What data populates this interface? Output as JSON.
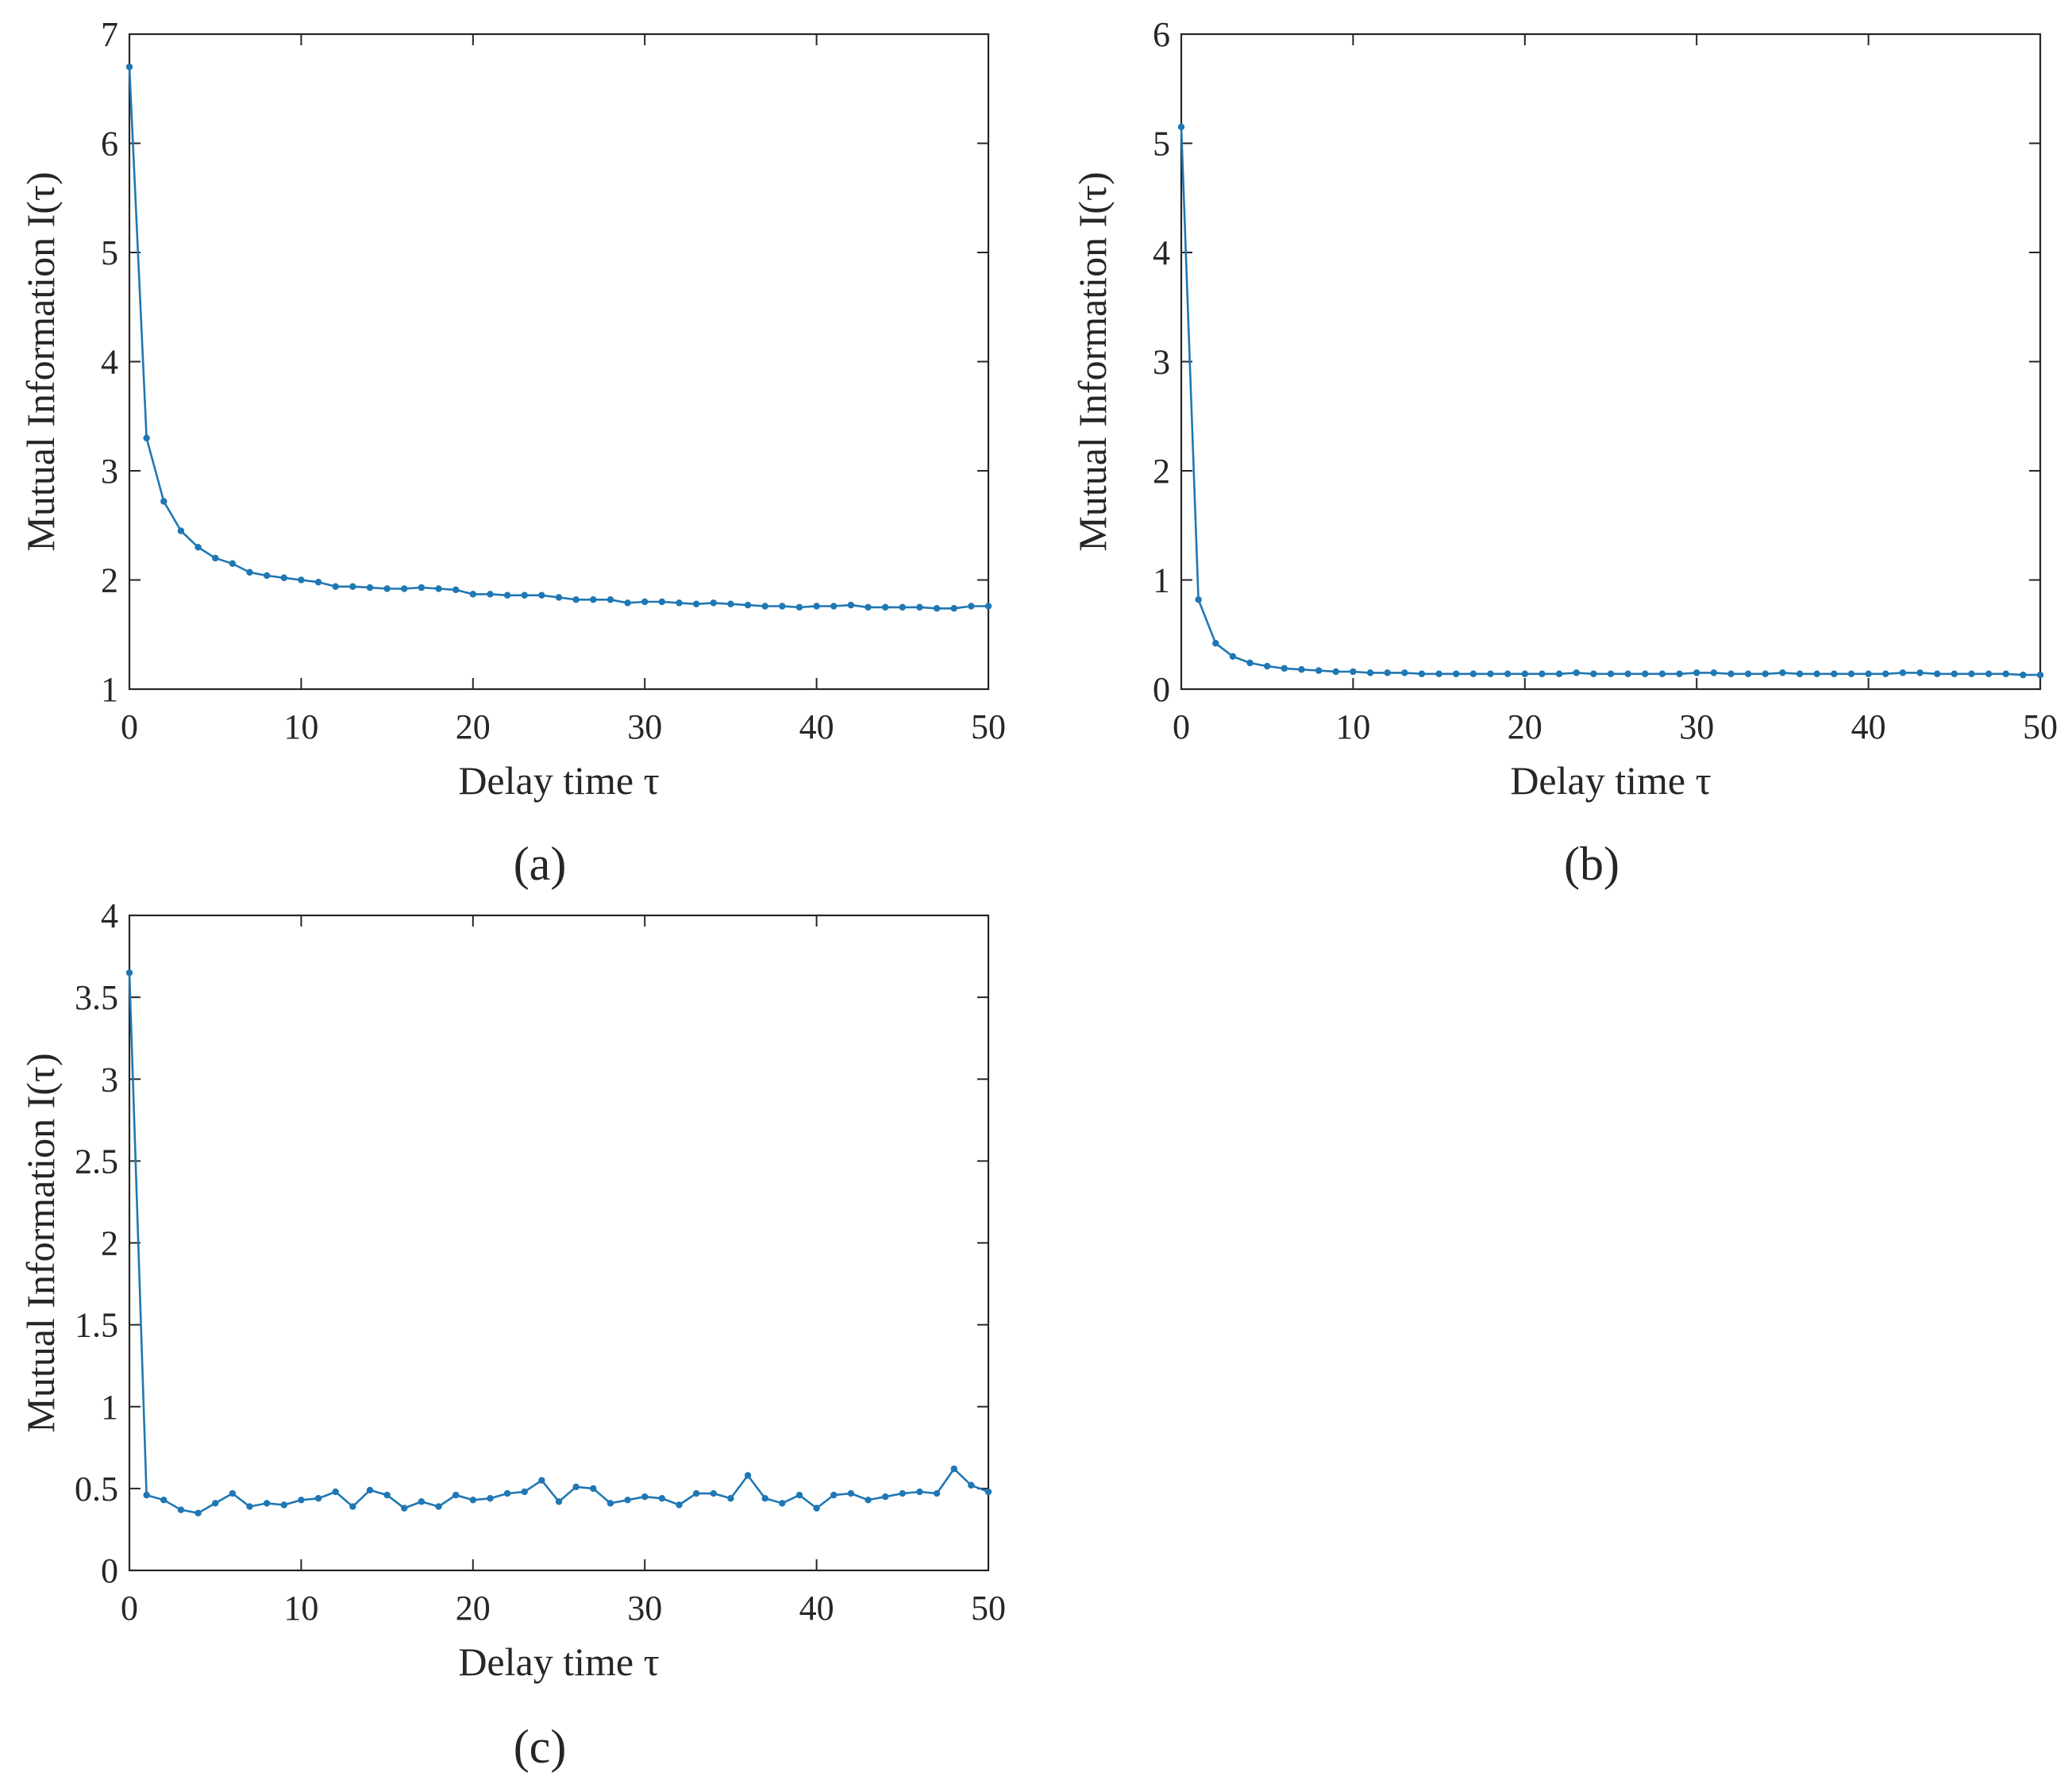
{
  "colors": {
    "series": "#1f77b4",
    "axis": "#262626",
    "background": "#ffffff"
  },
  "chart_data": [
    {
      "type": "line",
      "panel_label": "(a)",
      "xlabel": "Delay time τ",
      "ylabel": "Mutual Information I(τ)",
      "xlim": [
        0,
        50
      ],
      "ylim": [
        1,
        7
      ],
      "xticks": [
        0,
        10,
        20,
        30,
        40,
        50
      ],
      "yticks": [
        1,
        2,
        3,
        4,
        5,
        6,
        7
      ],
      "xtick_labels": [
        "0",
        "10",
        "20",
        "30",
        "40",
        "50"
      ],
      "ytick_labels": [
        "1",
        "2",
        "3",
        "4",
        "5",
        "6",
        "7"
      ],
      "grid": false,
      "series": [
        {
          "name": "I(τ)",
          "x": [
            0,
            1,
            2,
            3,
            4,
            5,
            6,
            7,
            8,
            9,
            10,
            11,
            12,
            13,
            14,
            15,
            16,
            17,
            18,
            19,
            20,
            21,
            22,
            23,
            24,
            25,
            26,
            27,
            28,
            29,
            30,
            31,
            32,
            33,
            34,
            35,
            36,
            37,
            38,
            39,
            40,
            41,
            42,
            43,
            44,
            45,
            46,
            47,
            48,
            49,
            50
          ],
          "values": [
            6.7,
            3.3,
            2.72,
            2.45,
            2.3,
            2.2,
            2.15,
            2.07,
            2.04,
            2.02,
            2.0,
            1.98,
            1.94,
            1.94,
            1.93,
            1.92,
            1.92,
            1.93,
            1.92,
            1.91,
            1.87,
            1.87,
            1.86,
            1.86,
            1.86,
            1.84,
            1.82,
            1.82,
            1.82,
            1.79,
            1.8,
            1.8,
            1.79,
            1.78,
            1.79,
            1.78,
            1.77,
            1.76,
            1.76,
            1.75,
            1.76,
            1.76,
            1.77,
            1.75,
            1.75,
            1.75,
            1.75,
            1.74,
            1.74,
            1.76,
            1.76
          ]
        }
      ]
    },
    {
      "type": "line",
      "panel_label": "(b)",
      "xlabel": "Delay time τ",
      "ylabel": "Mutual Information I(τ)",
      "xlim": [
        0,
        50
      ],
      "ylim": [
        0,
        6
      ],
      "xticks": [
        0,
        10,
        20,
        30,
        40,
        50
      ],
      "yticks": [
        0,
        1,
        2,
        3,
        4,
        5,
        6
      ],
      "xtick_labels": [
        "0",
        "10",
        "20",
        "30",
        "40",
        "50"
      ],
      "ytick_labels": [
        "0",
        "1",
        "2",
        "3",
        "4",
        "5",
        "6"
      ],
      "grid": false,
      "series": [
        {
          "name": "I(τ)",
          "x": [
            0,
            1,
            2,
            3,
            4,
            5,
            6,
            7,
            8,
            9,
            10,
            11,
            12,
            13,
            14,
            15,
            16,
            17,
            18,
            19,
            20,
            21,
            22,
            23,
            24,
            25,
            26,
            27,
            28,
            29,
            30,
            31,
            32,
            33,
            34,
            35,
            36,
            37,
            38,
            39,
            40,
            41,
            42,
            43,
            44,
            45,
            46,
            47,
            48,
            49,
            50
          ],
          "values": [
            5.15,
            0.82,
            0.42,
            0.3,
            0.24,
            0.21,
            0.19,
            0.18,
            0.17,
            0.16,
            0.16,
            0.15,
            0.15,
            0.15,
            0.14,
            0.14,
            0.14,
            0.14,
            0.14,
            0.14,
            0.14,
            0.14,
            0.14,
            0.15,
            0.14,
            0.14,
            0.14,
            0.14,
            0.14,
            0.14,
            0.15,
            0.15,
            0.14,
            0.14,
            0.14,
            0.15,
            0.14,
            0.14,
            0.14,
            0.14,
            0.14,
            0.14,
            0.15,
            0.15,
            0.14,
            0.14,
            0.14,
            0.14,
            0.14,
            0.13,
            0.13
          ]
        }
      ]
    },
    {
      "type": "line",
      "panel_label": "(c)",
      "xlabel": "Delay time τ",
      "ylabel": "Mutual Information I(τ)",
      "xlim": [
        0,
        50
      ],
      "ylim": [
        0,
        4
      ],
      "xticks": [
        0,
        10,
        20,
        30,
        40,
        50
      ],
      "yticks": [
        0,
        0.5,
        1,
        1.5,
        2,
        2.5,
        3,
        3.5,
        4
      ],
      "xtick_labels": [
        "0",
        "10",
        "20",
        "30",
        "40",
        "50"
      ],
      "ytick_labels": [
        "0",
        "0.5",
        "1",
        "1.5",
        "2",
        "2.5",
        "3",
        "3.5",
        "4"
      ],
      "grid": false,
      "series": [
        {
          "name": "I(τ)",
          "x": [
            0,
            1,
            2,
            3,
            4,
            5,
            6,
            7,
            8,
            9,
            10,
            11,
            12,
            13,
            14,
            15,
            16,
            17,
            18,
            19,
            20,
            21,
            22,
            23,
            24,
            25,
            26,
            27,
            28,
            29,
            30,
            31,
            32,
            33,
            34,
            35,
            36,
            37,
            38,
            39,
            40,
            41,
            42,
            43,
            44,
            45,
            46,
            47,
            48,
            49,
            50
          ],
          "values": [
            3.65,
            0.46,
            0.43,
            0.37,
            0.35,
            0.41,
            0.47,
            0.39,
            0.41,
            0.4,
            0.43,
            0.44,
            0.48,
            0.39,
            0.49,
            0.46,
            0.38,
            0.42,
            0.39,
            0.46,
            0.43,
            0.44,
            0.47,
            0.48,
            0.55,
            0.42,
            0.51,
            0.5,
            0.41,
            0.43,
            0.45,
            0.44,
            0.4,
            0.47,
            0.47,
            0.44,
            0.58,
            0.44,
            0.41,
            0.46,
            0.38,
            0.46,
            0.47,
            0.43,
            0.45,
            0.47,
            0.48,
            0.47,
            0.62,
            0.52,
            0.48
          ]
        }
      ]
    }
  ]
}
